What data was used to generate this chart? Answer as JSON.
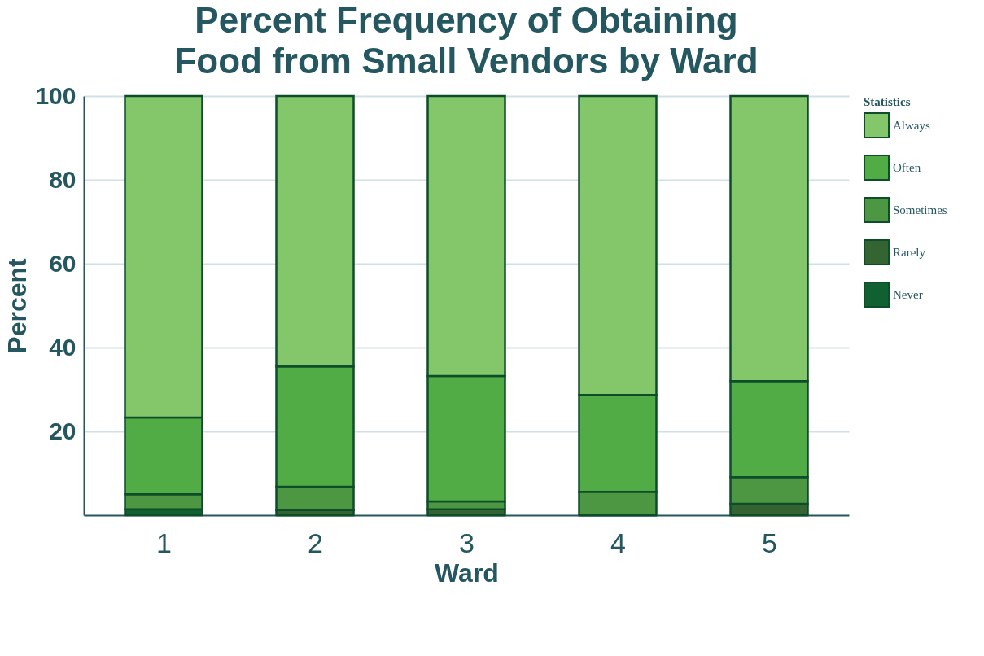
{
  "chart_data": {
    "type": "bar",
    "title": "Percent Frequency of Obtaining Food from Small Vendors by Ward",
    "xlabel": "Ward",
    "ylabel": "Percent",
    "legend_title": "Statistics",
    "categories": [
      "1",
      "2",
      "3",
      "4",
      "5"
    ],
    "stacked": true,
    "series": [
      {
        "name": "Never",
        "color": "#106032",
        "values": [
          1.4,
          0,
          0,
          0,
          0
        ]
      },
      {
        "name": "Rarely",
        "color": "#346432",
        "values": [
          0,
          1.2,
          1.4,
          0,
          2.7
        ]
      },
      {
        "name": "Sometimes",
        "color": "#4d9642",
        "values": [
          3.6,
          5.6,
          1.9,
          5.6,
          6.4
        ]
      },
      {
        "name": "Often",
        "color": "#52ac46",
        "values": [
          18.3,
          28.7,
          29.9,
          23.1,
          22.9
        ]
      },
      {
        "name": "Always",
        "color": "#84c66a",
        "values": [
          76.7,
          64.5,
          66.8,
          71.3,
          68.0
        ]
      }
    ],
    "ylim": [
      0,
      100
    ],
    "yticks": [
      20,
      40,
      60,
      80,
      100
    ],
    "grid": "y",
    "legend": "top right"
  }
}
